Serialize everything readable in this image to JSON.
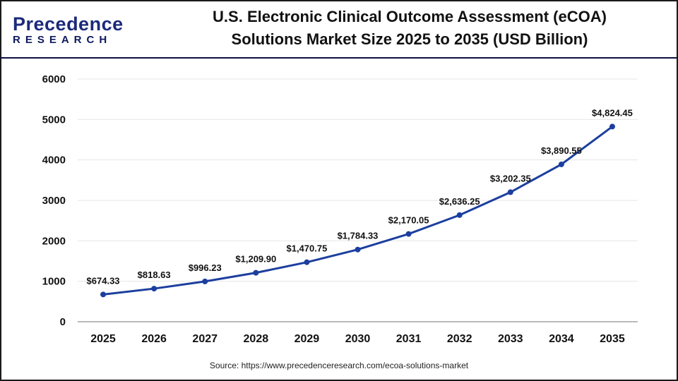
{
  "header": {
    "logo_line1": "Precedence",
    "logo_line2": "RESEARCH",
    "title_line1": "U.S. Electronic Clinical Outcome Assessment (eCOA)",
    "title_line2": "Solutions Market Size 2025 to 2035 (USD Billion)"
  },
  "source": "Source: https://www.precedenceresearch.com/ecoa-solutions-market",
  "chart_data": {
    "type": "line",
    "title": "U.S. Electronic Clinical Outcome Assessment (eCOA) Solutions Market Size 2025 to 2035 (USD Billion)",
    "categories": [
      "2025",
      "2026",
      "2027",
      "2028",
      "2029",
      "2030",
      "2031",
      "2032",
      "2033",
      "2034",
      "2035"
    ],
    "values": [
      674.33,
      818.63,
      996.23,
      1209.9,
      1470.75,
      1784.33,
      2170.05,
      2636.25,
      3202.35,
      3890.55,
      4824.45
    ],
    "labels": [
      "$674.33",
      "$818.63",
      "$996.23",
      "$1,209.90",
      "$1,470.75",
      "$1,784.33",
      "$2,170.05",
      "$2,636.25",
      "$3,202.35",
      "$3,890.55",
      "$4,824.45"
    ],
    "yticks": [
      "0",
      "1000",
      "2000",
      "3000",
      "4000",
      "5000",
      "6000"
    ],
    "ylim": [
      0,
      6000
    ],
    "grid": true,
    "line_color": "#1c3f9e"
  }
}
